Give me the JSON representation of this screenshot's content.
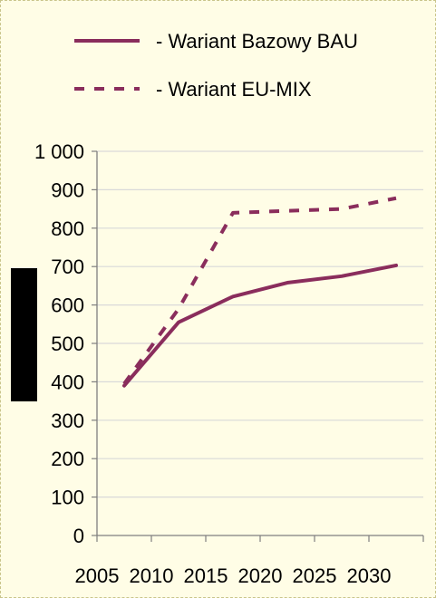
{
  "chart_data": {
    "type": "line",
    "categories": [
      "2005",
      "2010",
      "2015",
      "2020",
      "2025",
      "2030"
    ],
    "series": [
      {
        "name": "- Wariant Bazowy BAU",
        "values": [
          390,
          555,
          622,
          658,
          675,
          703
        ],
        "style": "solid",
        "color": "#8a2d5c"
      },
      {
        "name": "- Wariant EU-MIX",
        "values": [
          395,
          590,
          840,
          845,
          850,
          878
        ],
        "style": "dashed",
        "color": "#8a2d5c"
      }
    ],
    "yticks": [
      "0",
      "100",
      "200",
      "300",
      "400",
      "500",
      "600",
      "700",
      "800",
      "900",
      "1 000"
    ],
    "ylim": [
      0,
      1000
    ],
    "grid": "horizontal",
    "legend_position": "top"
  }
}
